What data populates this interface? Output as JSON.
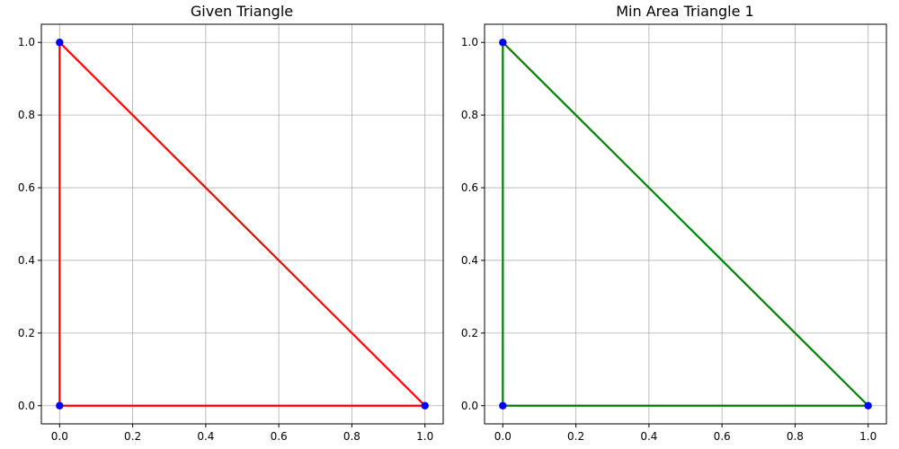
{
  "chart_data": [
    {
      "type": "line",
      "title": "Given Triangle",
      "xlim": [
        -0.05,
        1.05
      ],
      "ylim": [
        -0.05,
        1.05
      ],
      "xticks": [
        0.0,
        0.2,
        0.4,
        0.6,
        0.8,
        1.0
      ],
      "yticks": [
        0.0,
        0.2,
        0.4,
        0.6,
        0.8,
        1.0
      ],
      "xtick_labels": [
        "0.0",
        "0.2",
        "0.4",
        "0.6",
        "0.8",
        "1.0"
      ],
      "ytick_labels": [
        "0.0",
        "0.2",
        "0.4",
        "0.6",
        "0.8",
        "1.0"
      ],
      "grid": true,
      "triangle": {
        "vertices": [
          [
            0,
            0
          ],
          [
            1,
            0
          ],
          [
            0,
            1
          ]
        ],
        "color": "#ff0000"
      },
      "points": {
        "x": [
          0,
          1,
          0
        ],
        "y": [
          0,
          0,
          1
        ],
        "color": "#0000ff"
      }
    },
    {
      "type": "line",
      "title": "Min Area Triangle 1",
      "xlim": [
        -0.05,
        1.05
      ],
      "ylim": [
        -0.05,
        1.05
      ],
      "xticks": [
        0.0,
        0.2,
        0.4,
        0.6,
        0.8,
        1.0
      ],
      "yticks": [
        0.0,
        0.2,
        0.4,
        0.6,
        0.8,
        1.0
      ],
      "xtick_labels": [
        "0.0",
        "0.2",
        "0.4",
        "0.6",
        "0.8",
        "1.0"
      ],
      "ytick_labels": [
        "0.0",
        "0.2",
        "0.4",
        "0.6",
        "0.8",
        "1.0"
      ],
      "grid": true,
      "triangle": {
        "vertices": [
          [
            0,
            0
          ],
          [
            1,
            0
          ],
          [
            0,
            1
          ]
        ],
        "color": "#008000"
      },
      "points": {
        "x": [
          0,
          1,
          0
        ],
        "y": [
          0,
          0,
          1
        ],
        "color": "#0000ff"
      }
    }
  ]
}
